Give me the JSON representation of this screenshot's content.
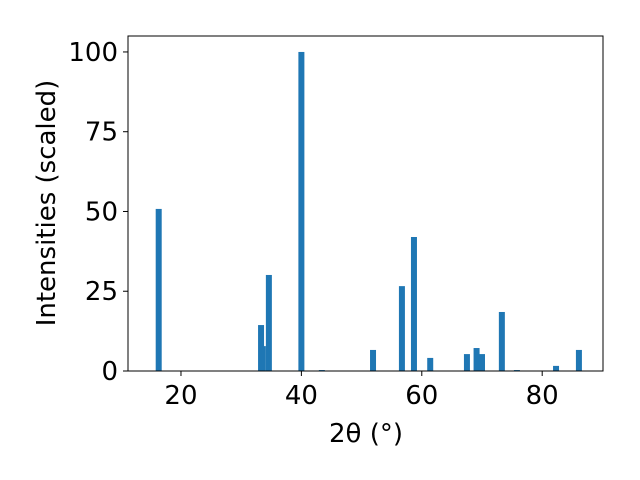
{
  "chart_data": {
    "type": "bar",
    "x_label": "2θ (°)",
    "y_label": "Intensities (scaled)",
    "x": [
      16.3,
      33.3,
      33.6,
      34.6,
      40.0,
      43.4,
      51.9,
      56.7,
      58.7,
      61.4,
      67.5,
      69.1,
      70.0,
      73.3,
      75.8,
      82.3,
      86.1
    ],
    "values": [
      50.8,
      14.4,
      7.8,
      30.1,
      100,
      0.3,
      6.6,
      26.6,
      42.0,
      4.1,
      5.3,
      7.2,
      5.3,
      18.5,
      0.3,
      1.6,
      6.6
    ],
    "color": "#1f77b4",
    "xlim": [
      11.2,
      90.1
    ],
    "ylim": [
      0,
      105
    ],
    "xticks": [
      20,
      40,
      60,
      80
    ],
    "yticks": [
      0,
      25,
      50,
      75,
      100
    ]
  }
}
